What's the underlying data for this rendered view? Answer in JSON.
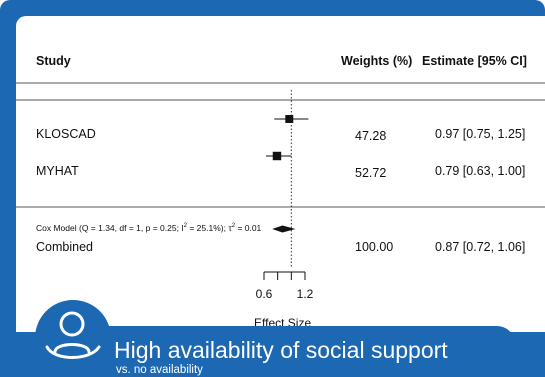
{
  "colors": {
    "frame": "#1c68b3",
    "panel": "#ffffff",
    "ink": "#111111",
    "banner_text": "#ffffff"
  },
  "headers": {
    "study": "Study",
    "weights": "Weights (%)",
    "estimate": "Estimate [95% CI]"
  },
  "chart_data": {
    "type": "forest",
    "xlabel": "Effect Size",
    "x_ticks": [
      0.6,
      0.8,
      1.0,
      1.2
    ],
    "x_tick_labels": [
      "0.6",
      "",
      "",
      "1.2"
    ],
    "reference_line": 1.0,
    "studies": [
      {
        "name": "KLOSCAD",
        "weight": "47.28",
        "estimate": 0.97,
        "ci_low": 0.75,
        "ci_high": 1.25,
        "estimate_text": "0.97 [0.75, 1.25]"
      },
      {
        "name": "MYHAT",
        "weight": "52.72",
        "estimate": 0.79,
        "ci_low": 0.63,
        "ci_high": 1.0,
        "estimate_text": "0.79 [0.63, 1.00]"
      }
    ],
    "model_note_prefix": "Cox Model (Q = 1.34, df = 1, p = 0.25; I",
    "model_note_mid": " = 25.1%); τ",
    "model_note_suffix": " = 0.01",
    "model_note_sup": "2",
    "pooled": {
      "name": "Combined",
      "weight": "100.00",
      "estimate": 0.87,
      "ci_low": 0.72,
      "ci_high": 1.06,
      "estimate_text": "0.87 [0.72, 1.06]"
    }
  },
  "banner": {
    "icon": "person-support-icon",
    "title": "High availability of social support",
    "subtitle": "vs. no availability"
  }
}
